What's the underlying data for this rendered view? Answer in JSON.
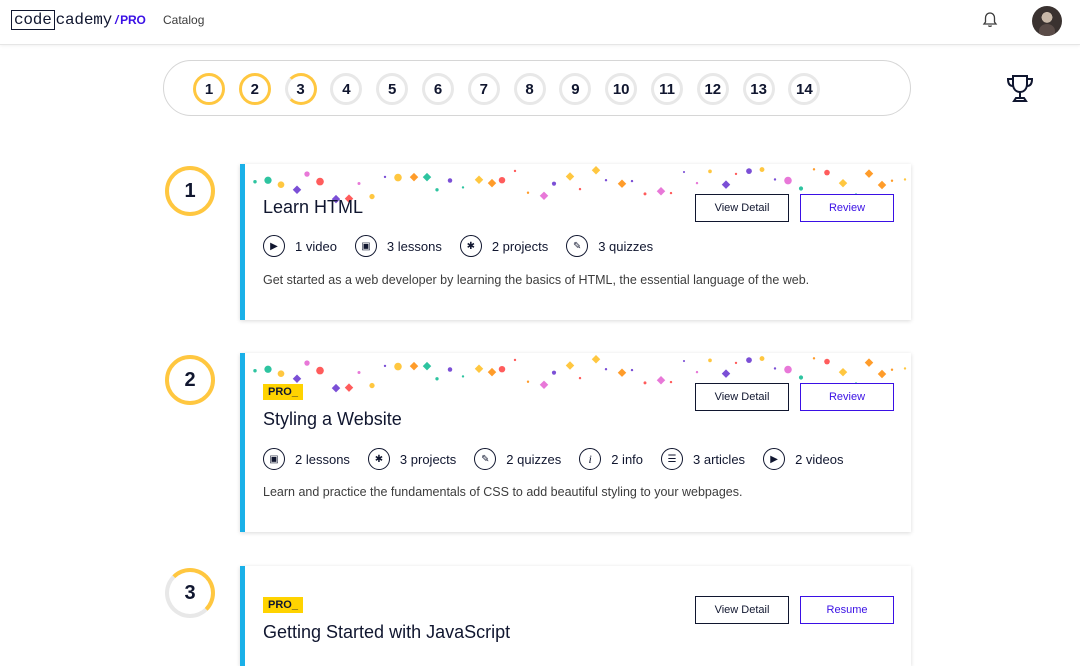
{
  "header": {
    "logo_code": "code",
    "logo_rest": "cademy",
    "logo_slash": "/",
    "logo_pro": "PRO",
    "catalog_label": "Catalog",
    "bell_icon": "bell-icon",
    "avatar_icon": "user-avatar"
  },
  "progress": {
    "steps": [
      "1",
      "2",
      "3",
      "4",
      "5",
      "6",
      "7",
      "8",
      "9",
      "10",
      "11",
      "12",
      "13",
      "14"
    ],
    "completed_steps": 2,
    "current_step": 3,
    "trophy_icon": "trophy-icon"
  },
  "modules": [
    {
      "number": "1",
      "title": "Learn HTML",
      "pro": false,
      "stats": [
        {
          "icon": "play-icon",
          "label": "1 video"
        },
        {
          "icon": "lesson-icon",
          "label": "3 lessons"
        },
        {
          "icon": "puzzle-icon",
          "label": "2 projects"
        },
        {
          "icon": "quiz-icon",
          "label": "3 quizzes"
        }
      ],
      "description": "Get started as a web developer by learning the basics of HTML, the essential language of the web.",
      "view_label": "View Detail",
      "action_label": "Review"
    },
    {
      "number": "2",
      "title": "Styling a Website",
      "pro": true,
      "pro_label": "PRO_",
      "stats": [
        {
          "icon": "lesson-icon",
          "label": "2 lessons"
        },
        {
          "icon": "puzzle-icon",
          "label": "3 projects"
        },
        {
          "icon": "quiz-icon",
          "label": "2 quizzes"
        },
        {
          "icon": "info-icon",
          "label": "2 info"
        },
        {
          "icon": "article-icon",
          "label": "3 articles"
        },
        {
          "icon": "play-icon",
          "label": "2 videos"
        }
      ],
      "description": "Learn and practice the fundamentals of CSS to add beautiful styling to your webpages.",
      "view_label": "View Detail",
      "action_label": "Review"
    },
    {
      "number": "3",
      "title": "Getting Started with JavaScript",
      "pro": true,
      "pro_label": "PRO_",
      "view_label": "View Detail",
      "action_label": "Resume"
    }
  ],
  "colors": {
    "accent": "#3a10e5",
    "progress_yellow": "#ffc740",
    "card_border": "#1ab0e8",
    "pro_yellow": "#ffd300"
  }
}
